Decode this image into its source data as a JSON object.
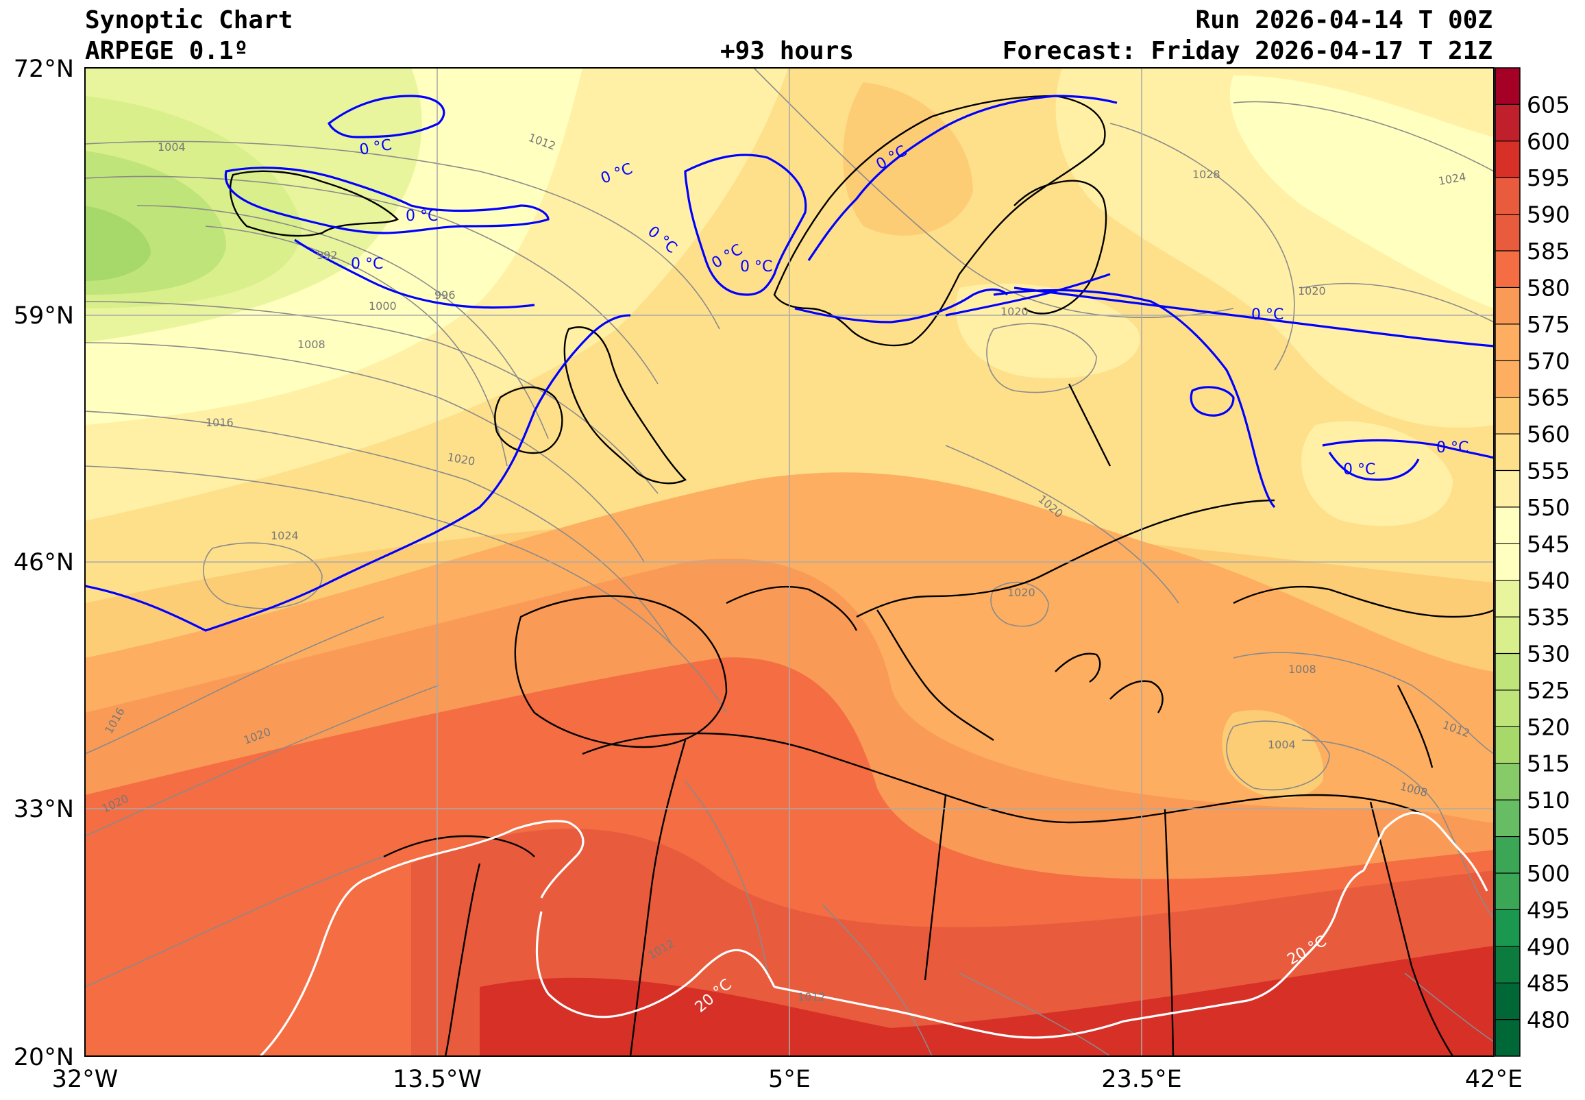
{
  "header": {
    "title": "Synoptic Chart",
    "model": "ARPEGE 0.1º",
    "run": "Run 2026-04-14 T 00Z",
    "lead": "+93 hours",
    "forecast": "Forecast: Friday 2026-04-17 T 21Z"
  },
  "axes": {
    "lat_labels": [
      "72°N",
      "59°N",
      "46°N",
      "33°N",
      "20°N"
    ],
    "lon_labels": [
      "32°W",
      "13.5°W",
      "5°E",
      "23.5°E",
      "42°E"
    ]
  },
  "colorbar": {
    "min": 475,
    "max": 610,
    "step": 5,
    "labels": [
      "605",
      "600",
      "595",
      "590",
      "585",
      "580",
      "575",
      "570",
      "565",
      "560",
      "555",
      "550",
      "545",
      "540",
      "535",
      "530",
      "525",
      "520",
      "515",
      "510",
      "505",
      "500",
      "495",
      "490",
      "485",
      "480"
    ],
    "colors": [
      "#006837",
      "#0c7c3e",
      "#1a9850",
      "#3aa656",
      "#66bd63",
      "#86cb67",
      "#a6d96a",
      "#bfe47a",
      "#d9ef8b",
      "#e9f59c",
      "#ffffbf",
      "#fff0a6",
      "#fee08b",
      "#fdcd76",
      "#fdae61",
      "#f99b56",
      "#f46d43",
      "#e95b3d",
      "#d73027",
      "#c0202b",
      "#a50026"
    ]
  },
  "isobar_labels": [
    {
      "text": "1004"
    },
    {
      "text": "1012"
    },
    {
      "text": "992"
    },
    {
      "text": "996"
    },
    {
      "text": "1000"
    },
    {
      "text": "1008"
    },
    {
      "text": "1016"
    },
    {
      "text": "1020"
    },
    {
      "text": "1024"
    },
    {
      "text": "1028"
    },
    {
      "text": "1020"
    },
    {
      "text": "1024"
    },
    {
      "text": "1020"
    },
    {
      "text": "1020"
    },
    {
      "text": "1020"
    },
    {
      "text": "1008"
    },
    {
      "text": "1004"
    },
    {
      "text": "1008"
    },
    {
      "text": "1012"
    },
    {
      "text": "1016"
    },
    {
      "text": "1020"
    },
    {
      "text": "1020"
    },
    {
      "text": "1012"
    },
    {
      "text": "1012"
    }
  ],
  "temp_labels": {
    "zero": "0 °C",
    "twenty": "20 °C"
  }
}
